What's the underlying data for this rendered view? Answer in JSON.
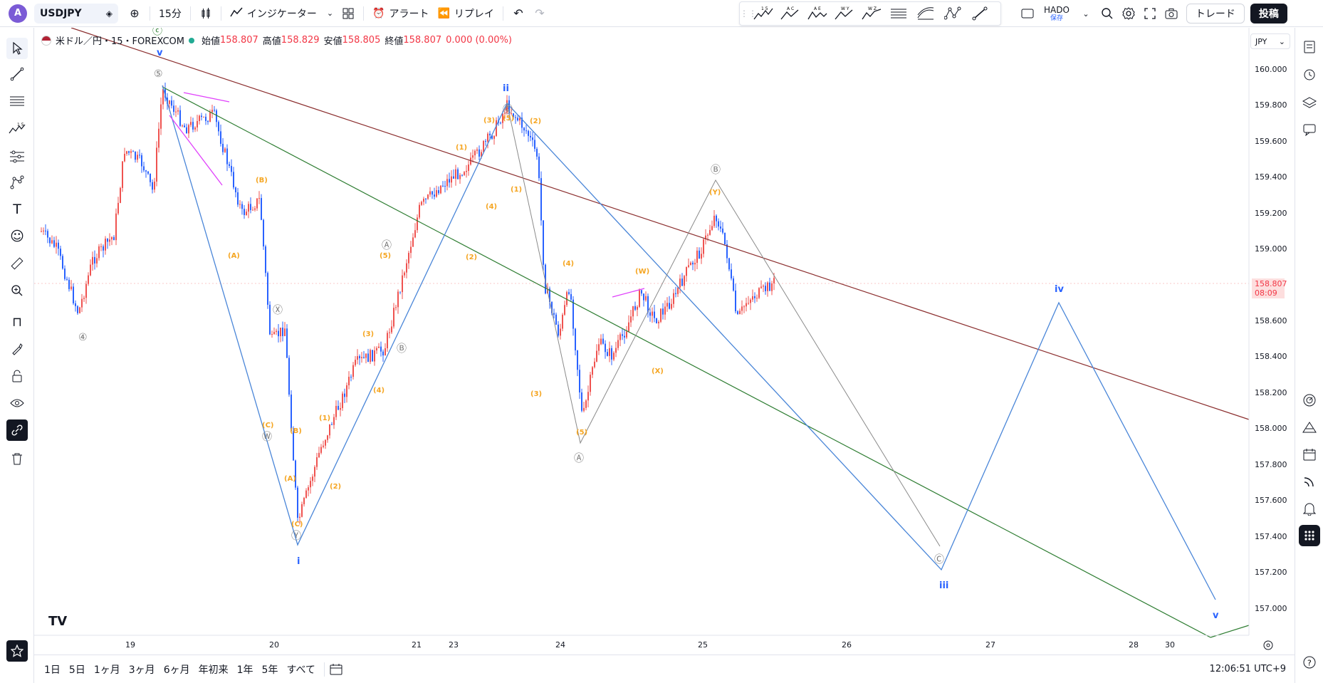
{
  "toolbar": {
    "avatar_letter": "A",
    "symbol": "USDJPY",
    "interval": "15分",
    "indicators": "インジケーター",
    "alert": "アラート",
    "replay": "リプレイ",
    "layout_name": "HADO",
    "layout_status": "保存",
    "trade": "トレード",
    "post": "投稿"
  },
  "drawing_tools": [
    {
      "icon": "elliott-impulse-icon",
      "sup": "1 5"
    },
    {
      "icon": "elliott-correction-icon",
      "sup": "A C"
    },
    {
      "icon": "elliott-triangle-icon",
      "sup": "A E"
    },
    {
      "icon": "elliott-double-combo-icon",
      "sup": "W Y"
    },
    {
      "icon": "elliott-triple-combo-icon",
      "sup": "W Z"
    }
  ],
  "legend": {
    "title": "米ドル／円・15・FOREXCOM",
    "open_label": "始値",
    "open": "158.807",
    "high_label": "高値",
    "high": "158.829",
    "low_label": "安値",
    "low": "158.805",
    "close_label": "終値",
    "close": "158.807",
    "change": "0.000 (0.00%)"
  },
  "currency": "JPY",
  "last_price": {
    "price": "158.807",
    "countdown": "08:09"
  },
  "price_axis": [
    "160.000",
    "159.800",
    "159.600",
    "159.400",
    "159.200",
    "159.000",
    "158.800",
    "158.600",
    "158.400",
    "158.200",
    "158.000",
    "157.800",
    "157.600",
    "157.400",
    "157.200",
    "157.000"
  ],
  "time_axis": [
    "19",
    "20",
    "21",
    "23",
    "24",
    "25",
    "26",
    "27",
    "28",
    "30"
  ],
  "ranges": [
    "1日",
    "5日",
    "1ヶ月",
    "3ヶ月",
    "6ヶ月",
    "年初来",
    "1年",
    "5年",
    "すべて"
  ],
  "clock": "12:06:51 UTC+9",
  "logo": "TV",
  "wave_labels": {
    "major": [
      "v",
      "i",
      "ii",
      "iii",
      "iv",
      "v"
    ],
    "minor": [
      "⑤",
      "④",
      "ⓒ",
      "Ⓐ",
      "Ⓑ",
      "Ⓧ",
      "Ⓦ",
      "Ⓨ",
      "Ⓑ",
      "Ⓐ",
      "Ⓒ",
      "Ⓒ"
    ],
    "sub": [
      "(1)",
      "(2)",
      "(3)",
      "(4)",
      "(5)",
      "(A)",
      "(B)",
      "(C)",
      "(W)",
      "(X)",
      "(Y)"
    ]
  },
  "colors": {
    "up": "#ef5350",
    "down": "#2962ff",
    "blue_wave": "#4a86d8",
    "orange_label": "#f5a623",
    "brown_line": "#8b2e2e",
    "green_line": "#2e7d32",
    "gray_wave": "#8a8a8a",
    "pink": "#e040fb"
  }
}
